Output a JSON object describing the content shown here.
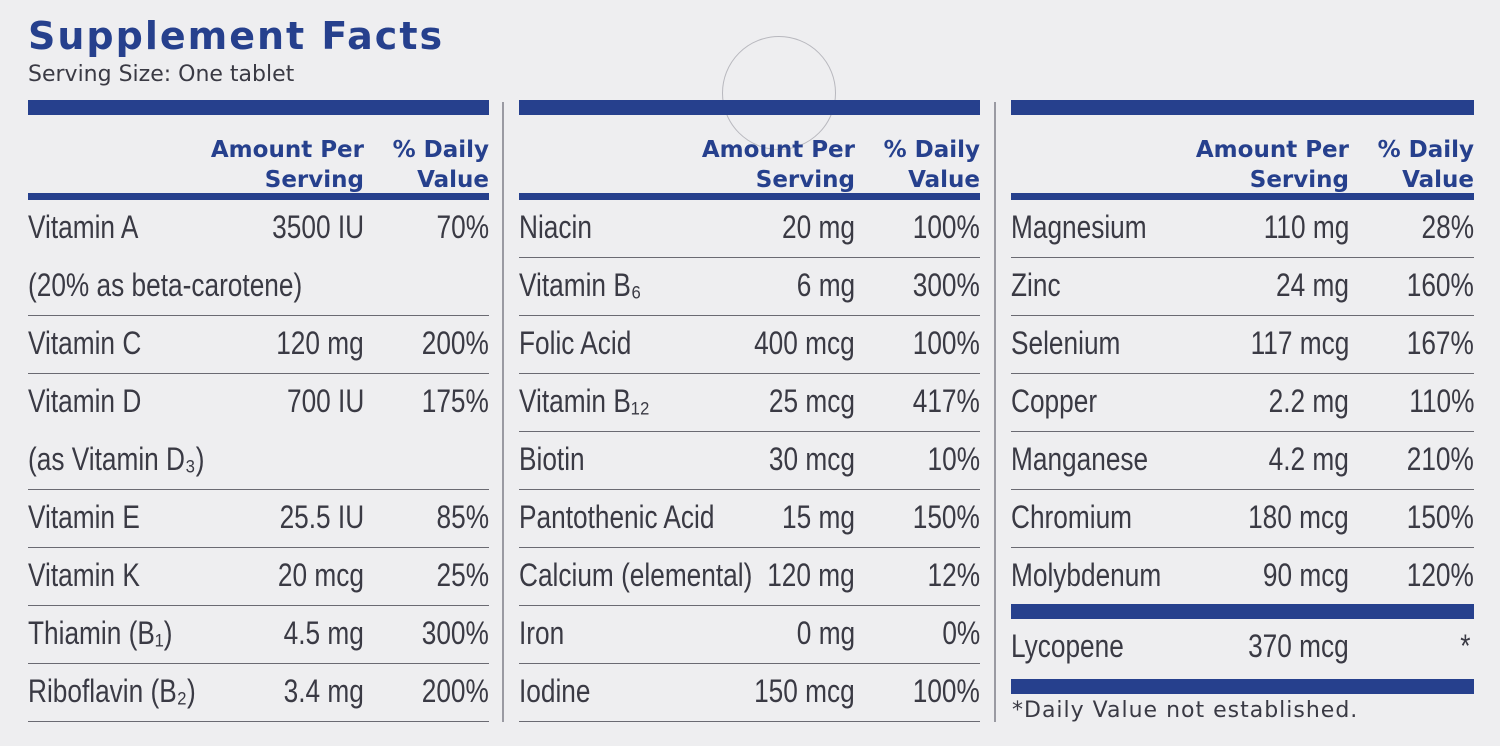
{
  "title": "Supplement Facts",
  "serving_size": "Serving Size: One tablet",
  "headers": {
    "amount_line1": "Amount Per",
    "amount_line2": "Serving",
    "dv_line1": "% Daily",
    "dv_line2": "Value"
  },
  "columns": [
    {
      "rows": [
        {
          "name": "Vitamin A",
          "amount": "3500 IU",
          "dv": "70%"
        },
        {
          "name": "(20% as beta-carotene)",
          "amount": "",
          "dv": ""
        },
        {
          "name": "Vitamin C",
          "amount": "120 mg",
          "dv": "200%"
        },
        {
          "name": "Vitamin D",
          "amount": "700 IU",
          "dv": "175%"
        },
        {
          "name": "(as Vitamin D₃)",
          "amount": "",
          "dv": ""
        },
        {
          "name": "Vitamin E",
          "amount": "25.5 IU",
          "dv": "85%"
        },
        {
          "name": "Vitamin K",
          "amount": "20 mcg",
          "dv": "25%"
        },
        {
          "name": "Thiamin (B₁)",
          "amount": "4.5 mg",
          "dv": "300%"
        },
        {
          "name": "Riboflavin (B₂)",
          "amount": "3.4 mg",
          "dv": "200%"
        }
      ]
    },
    {
      "rows": [
        {
          "name": "Niacin",
          "amount": "20 mg",
          "dv": "100%"
        },
        {
          "name": "Vitamin B₆",
          "amount": "6 mg",
          "dv": "300%"
        },
        {
          "name": "Folic Acid",
          "amount": "400 mcg",
          "dv": "100%"
        },
        {
          "name": "Vitamin B₁₂",
          "amount": "25 mcg",
          "dv": "417%"
        },
        {
          "name": "Biotin",
          "amount": "30 mcg",
          "dv": "10%"
        },
        {
          "name": "Pantothenic Acid",
          "amount": "15 mg",
          "dv": "150%"
        },
        {
          "name": "Calcium (elemental)",
          "amount": "120 mg",
          "dv": "12%"
        },
        {
          "name": "Iron",
          "amount": "0 mg",
          "dv": "0%"
        },
        {
          "name": "Iodine",
          "amount": "150 mcg",
          "dv": "100%"
        }
      ]
    },
    {
      "rows": [
        {
          "name": "Magnesium",
          "amount": "110 mg",
          "dv": "28%"
        },
        {
          "name": "Zinc",
          "amount": "24 mg",
          "dv": "160%"
        },
        {
          "name": "Selenium",
          "amount": "117 mcg",
          "dv": "167%"
        },
        {
          "name": "Copper",
          "amount": "2.2 mg",
          "dv": "110%"
        },
        {
          "name": "Manganese",
          "amount": "4.2 mg",
          "dv": "210%"
        },
        {
          "name": "Chromium",
          "amount": "180 mcg",
          "dv": "150%"
        },
        {
          "name": "Molybdenum",
          "amount": "90 mcg",
          "dv": "120%"
        }
      ],
      "extra_row": {
        "name": "Lycopene",
        "amount": "370 mcg",
        "dv": "*"
      }
    }
  ],
  "footnote": "*Daily Value not established.",
  "colors": {
    "accent": "#26408d",
    "text": "#3a3a44",
    "background": "#eeeef0"
  }
}
